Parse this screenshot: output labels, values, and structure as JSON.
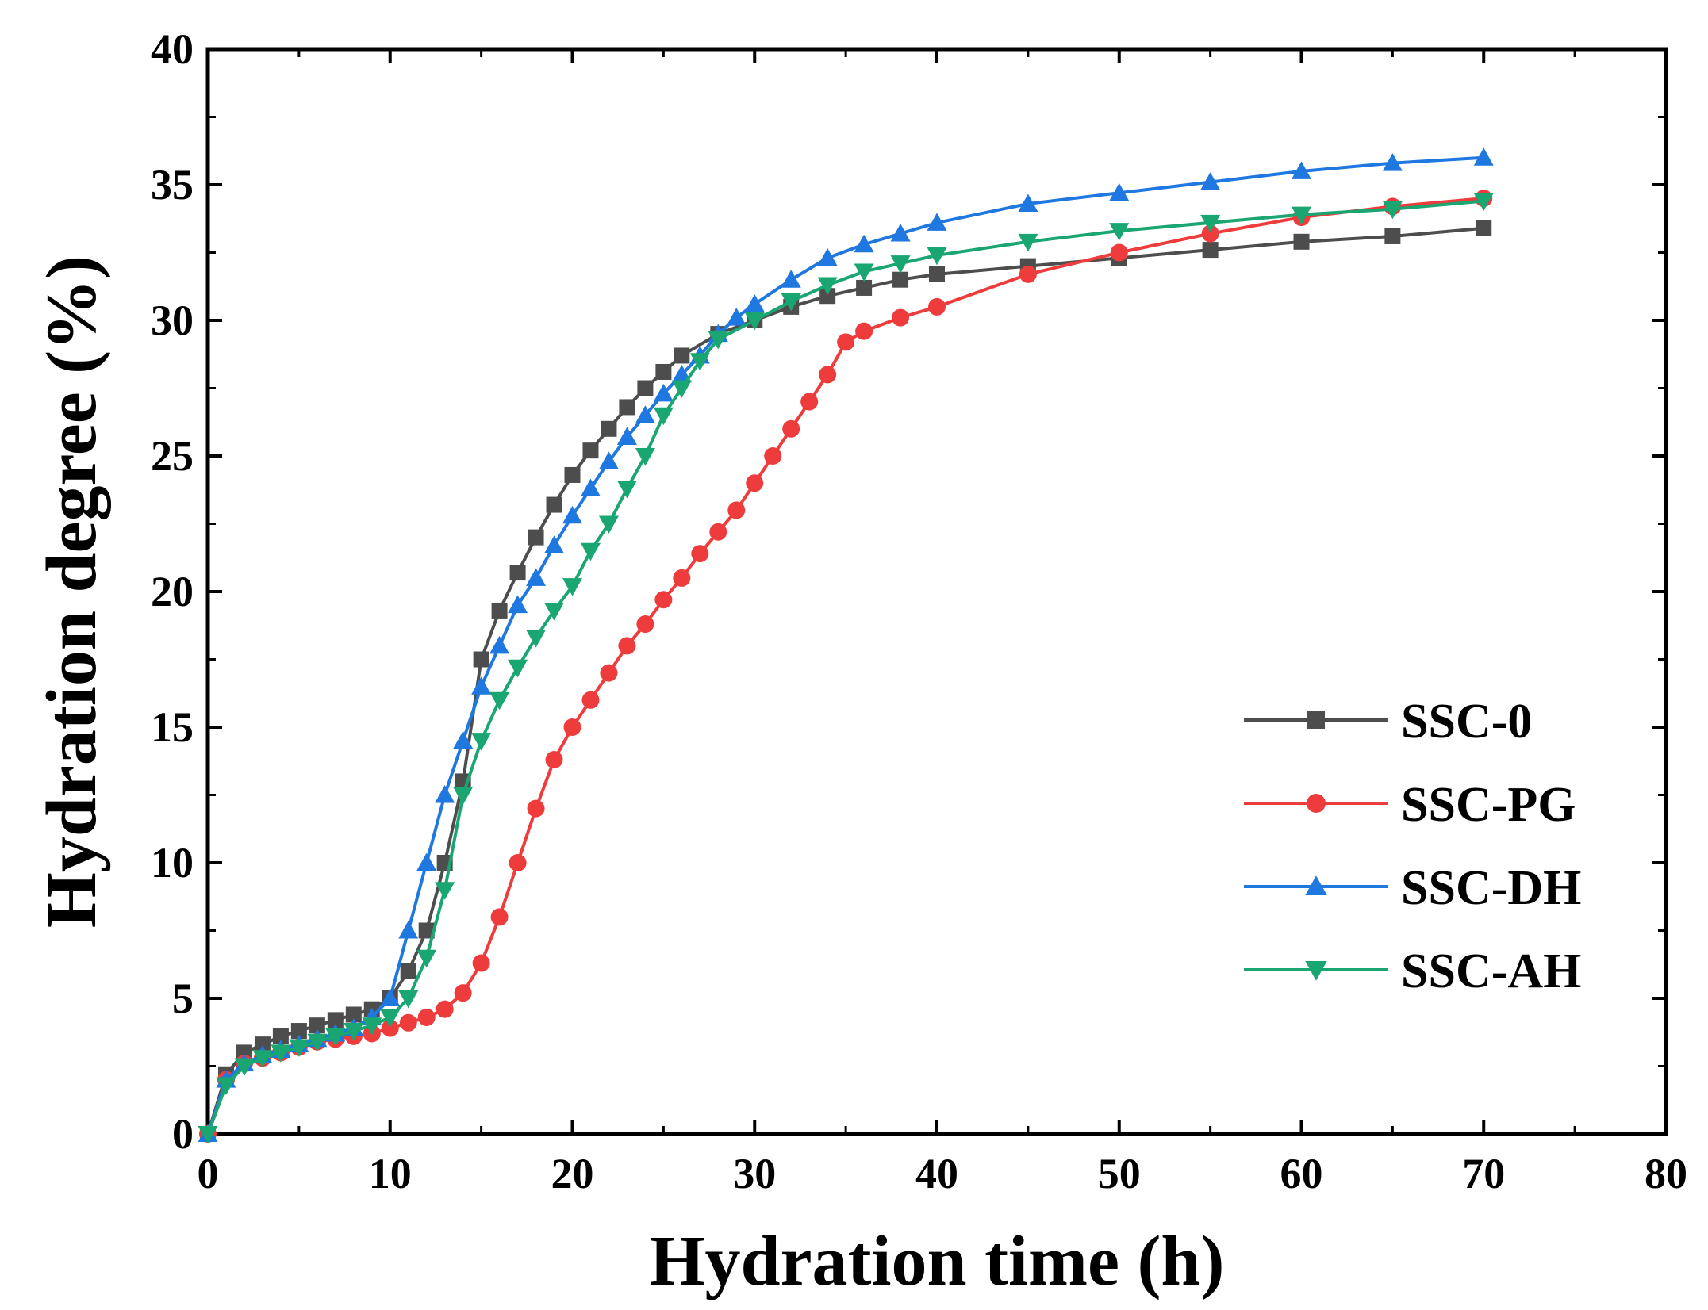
{
  "chart_data": {
    "type": "line",
    "xlabel": "Hydration time (h)",
    "ylabel": "Hydration degree (%)",
    "xlim": [
      0,
      80
    ],
    "ylim": [
      0,
      40
    ],
    "xticks": [
      0,
      10,
      20,
      30,
      40,
      50,
      60,
      70,
      80
    ],
    "yticks": [
      0,
      5,
      10,
      15,
      20,
      25,
      30,
      35,
      40
    ],
    "xtick_labels": [
      "0",
      "10",
      "20",
      "30",
      "40",
      "50",
      "60",
      "70",
      "80"
    ],
    "ytick_labels": [
      "0",
      "5",
      "10",
      "15",
      "20",
      "25",
      "30",
      "35",
      "40"
    ],
    "grid": false,
    "legend_position": "lower-right",
    "series": [
      {
        "name": "SSC-0",
        "color": "#4d4d4d",
        "marker": "square",
        "x": [
          0,
          1,
          2,
          3,
          4,
          5,
          6,
          7,
          8,
          9,
          10,
          11,
          12,
          13,
          14,
          15,
          16,
          17,
          18,
          19,
          20,
          21,
          22,
          23,
          24,
          25,
          26,
          28,
          30,
          32,
          34,
          36,
          38,
          40,
          45,
          50,
          55,
          60,
          65,
          70
        ],
        "y": [
          0,
          2.2,
          3.0,
          3.3,
          3.6,
          3.8,
          4.0,
          4.2,
          4.4,
          4.6,
          5.0,
          6.0,
          7.5,
          10.0,
          13.0,
          17.5,
          19.3,
          20.7,
          22.0,
          23.2,
          24.3,
          25.2,
          26.0,
          26.8,
          27.5,
          28.1,
          28.7,
          29.5,
          30.0,
          30.5,
          30.9,
          31.2,
          31.5,
          31.7,
          32.0,
          32.3,
          32.6,
          32.9,
          33.1,
          33.4
        ]
      },
      {
        "name": "SSC-PG",
        "color": "#ee3b3b",
        "marker": "circle",
        "x": [
          0,
          1,
          2,
          3,
          4,
          5,
          6,
          7,
          8,
          9,
          10,
          11,
          12,
          13,
          14,
          15,
          16,
          17,
          18,
          19,
          20,
          21,
          22,
          23,
          24,
          25,
          26,
          27,
          28,
          29,
          30,
          31,
          32,
          33,
          34,
          35,
          36,
          38,
          40,
          45,
          50,
          55,
          60,
          65,
          70
        ],
        "y": [
          0,
          2.0,
          2.6,
          2.8,
          3.0,
          3.2,
          3.4,
          3.5,
          3.6,
          3.7,
          3.9,
          4.1,
          4.3,
          4.6,
          5.2,
          6.3,
          8.0,
          10.0,
          12.0,
          13.8,
          15.0,
          16.0,
          17.0,
          18.0,
          18.8,
          19.7,
          20.5,
          21.4,
          22.2,
          23.0,
          24.0,
          25.0,
          26.0,
          27.0,
          28.0,
          29.2,
          29.6,
          30.1,
          30.5,
          31.7,
          32.5,
          33.2,
          33.8,
          34.2,
          34.5
        ]
      },
      {
        "name": "SSC-DH",
        "color": "#1f77e0",
        "marker": "triangle-up",
        "x": [
          0,
          1,
          2,
          3,
          4,
          5,
          6,
          7,
          8,
          9,
          10,
          11,
          12,
          13,
          14,
          15,
          16,
          17,
          18,
          19,
          20,
          21,
          22,
          23,
          24,
          25,
          26,
          27,
          28,
          29,
          30,
          32,
          34,
          36,
          38,
          40,
          45,
          50,
          55,
          60,
          65,
          70
        ],
        "y": [
          0,
          2.0,
          2.6,
          2.9,
          3.1,
          3.3,
          3.5,
          3.7,
          3.9,
          4.3,
          5.0,
          7.5,
          10.0,
          12.5,
          14.5,
          16.5,
          18.0,
          19.5,
          20.5,
          21.7,
          22.8,
          23.8,
          24.8,
          25.7,
          26.5,
          27.3,
          28.0,
          28.7,
          29.5,
          30.1,
          30.6,
          31.5,
          32.3,
          32.8,
          33.2,
          33.6,
          34.3,
          34.7,
          35.1,
          35.5,
          35.8,
          36.0
        ]
      },
      {
        "name": "SSC-AH",
        "color": "#1aa671",
        "marker": "triangle-down",
        "x": [
          0,
          1,
          2,
          3,
          4,
          5,
          6,
          7,
          8,
          9,
          10,
          11,
          12,
          13,
          14,
          15,
          16,
          17,
          18,
          19,
          20,
          21,
          22,
          23,
          24,
          25,
          26,
          27,
          28,
          30,
          32,
          34,
          36,
          38,
          40,
          45,
          50,
          55,
          60,
          65,
          70
        ],
        "y": [
          0,
          1.8,
          2.5,
          2.8,
          3.0,
          3.2,
          3.4,
          3.6,
          3.8,
          4.0,
          4.3,
          5.0,
          6.5,
          9.0,
          12.5,
          14.5,
          16.0,
          17.2,
          18.3,
          19.3,
          20.2,
          21.5,
          22.5,
          23.8,
          25.0,
          26.5,
          27.5,
          28.5,
          29.3,
          30.0,
          30.7,
          31.3,
          31.8,
          32.1,
          32.4,
          32.9,
          33.3,
          33.6,
          33.9,
          34.1,
          34.4
        ]
      }
    ]
  }
}
